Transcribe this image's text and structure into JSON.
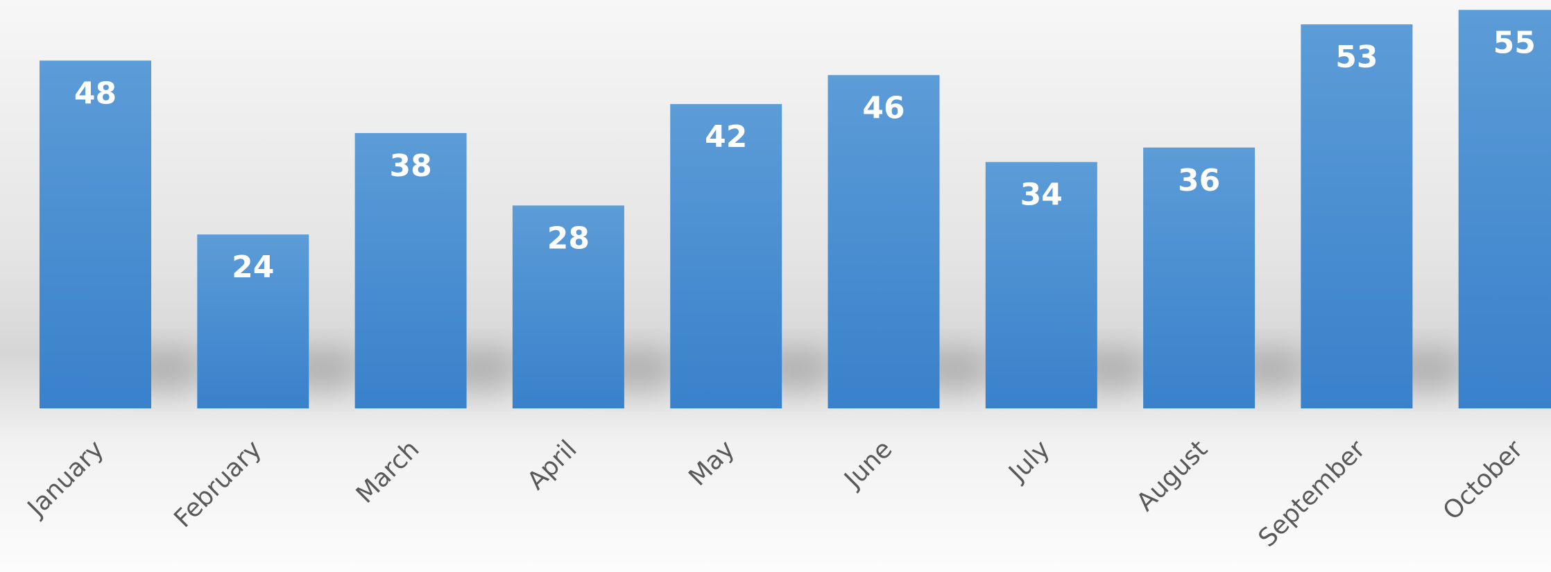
{
  "chart_data": {
    "type": "bar",
    "categories": [
      "January",
      "February",
      "March",
      "April",
      "May",
      "June",
      "July",
      "August",
      "September",
      "October"
    ],
    "values": [
      48,
      24,
      38,
      28,
      42,
      46,
      34,
      36,
      53,
      55
    ],
    "color": "#4a8fd4"
  }
}
